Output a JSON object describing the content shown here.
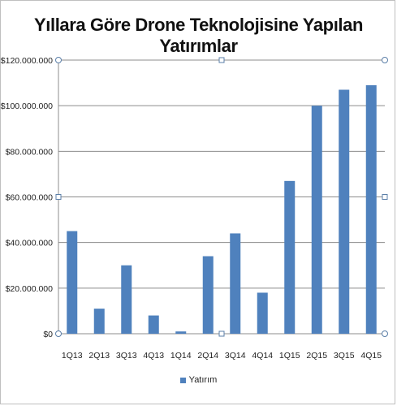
{
  "chart_data": {
    "type": "bar",
    "title": "Yıllara Göre Drone Teknolojisine Yapılan Yatırımlar",
    "categories": [
      "1Q13",
      "2Q13",
      "3Q13",
      "4Q13",
      "1Q14",
      "2Q14",
      "3Q14",
      "4Q14",
      "1Q15",
      "2Q15",
      "3Q15",
      "4Q15"
    ],
    "series": [
      {
        "name": "Yatırım",
        "color": "#4f81bd",
        "values": [
          45000000,
          11000000,
          30000000,
          8000000,
          1000000,
          34000000,
          44000000,
          18000000,
          67000000,
          100000000,
          107000000,
          109000000
        ]
      }
    ],
    "y_ticks": [
      "$0",
      "$20.000.000",
      "$40.000.000",
      "$60.000.000",
      "$80.000.000",
      "$100.000.000",
      "$120.000.000"
    ],
    "ylim": [
      0,
      120000000
    ],
    "grid": true,
    "legend_position": "bottom"
  }
}
